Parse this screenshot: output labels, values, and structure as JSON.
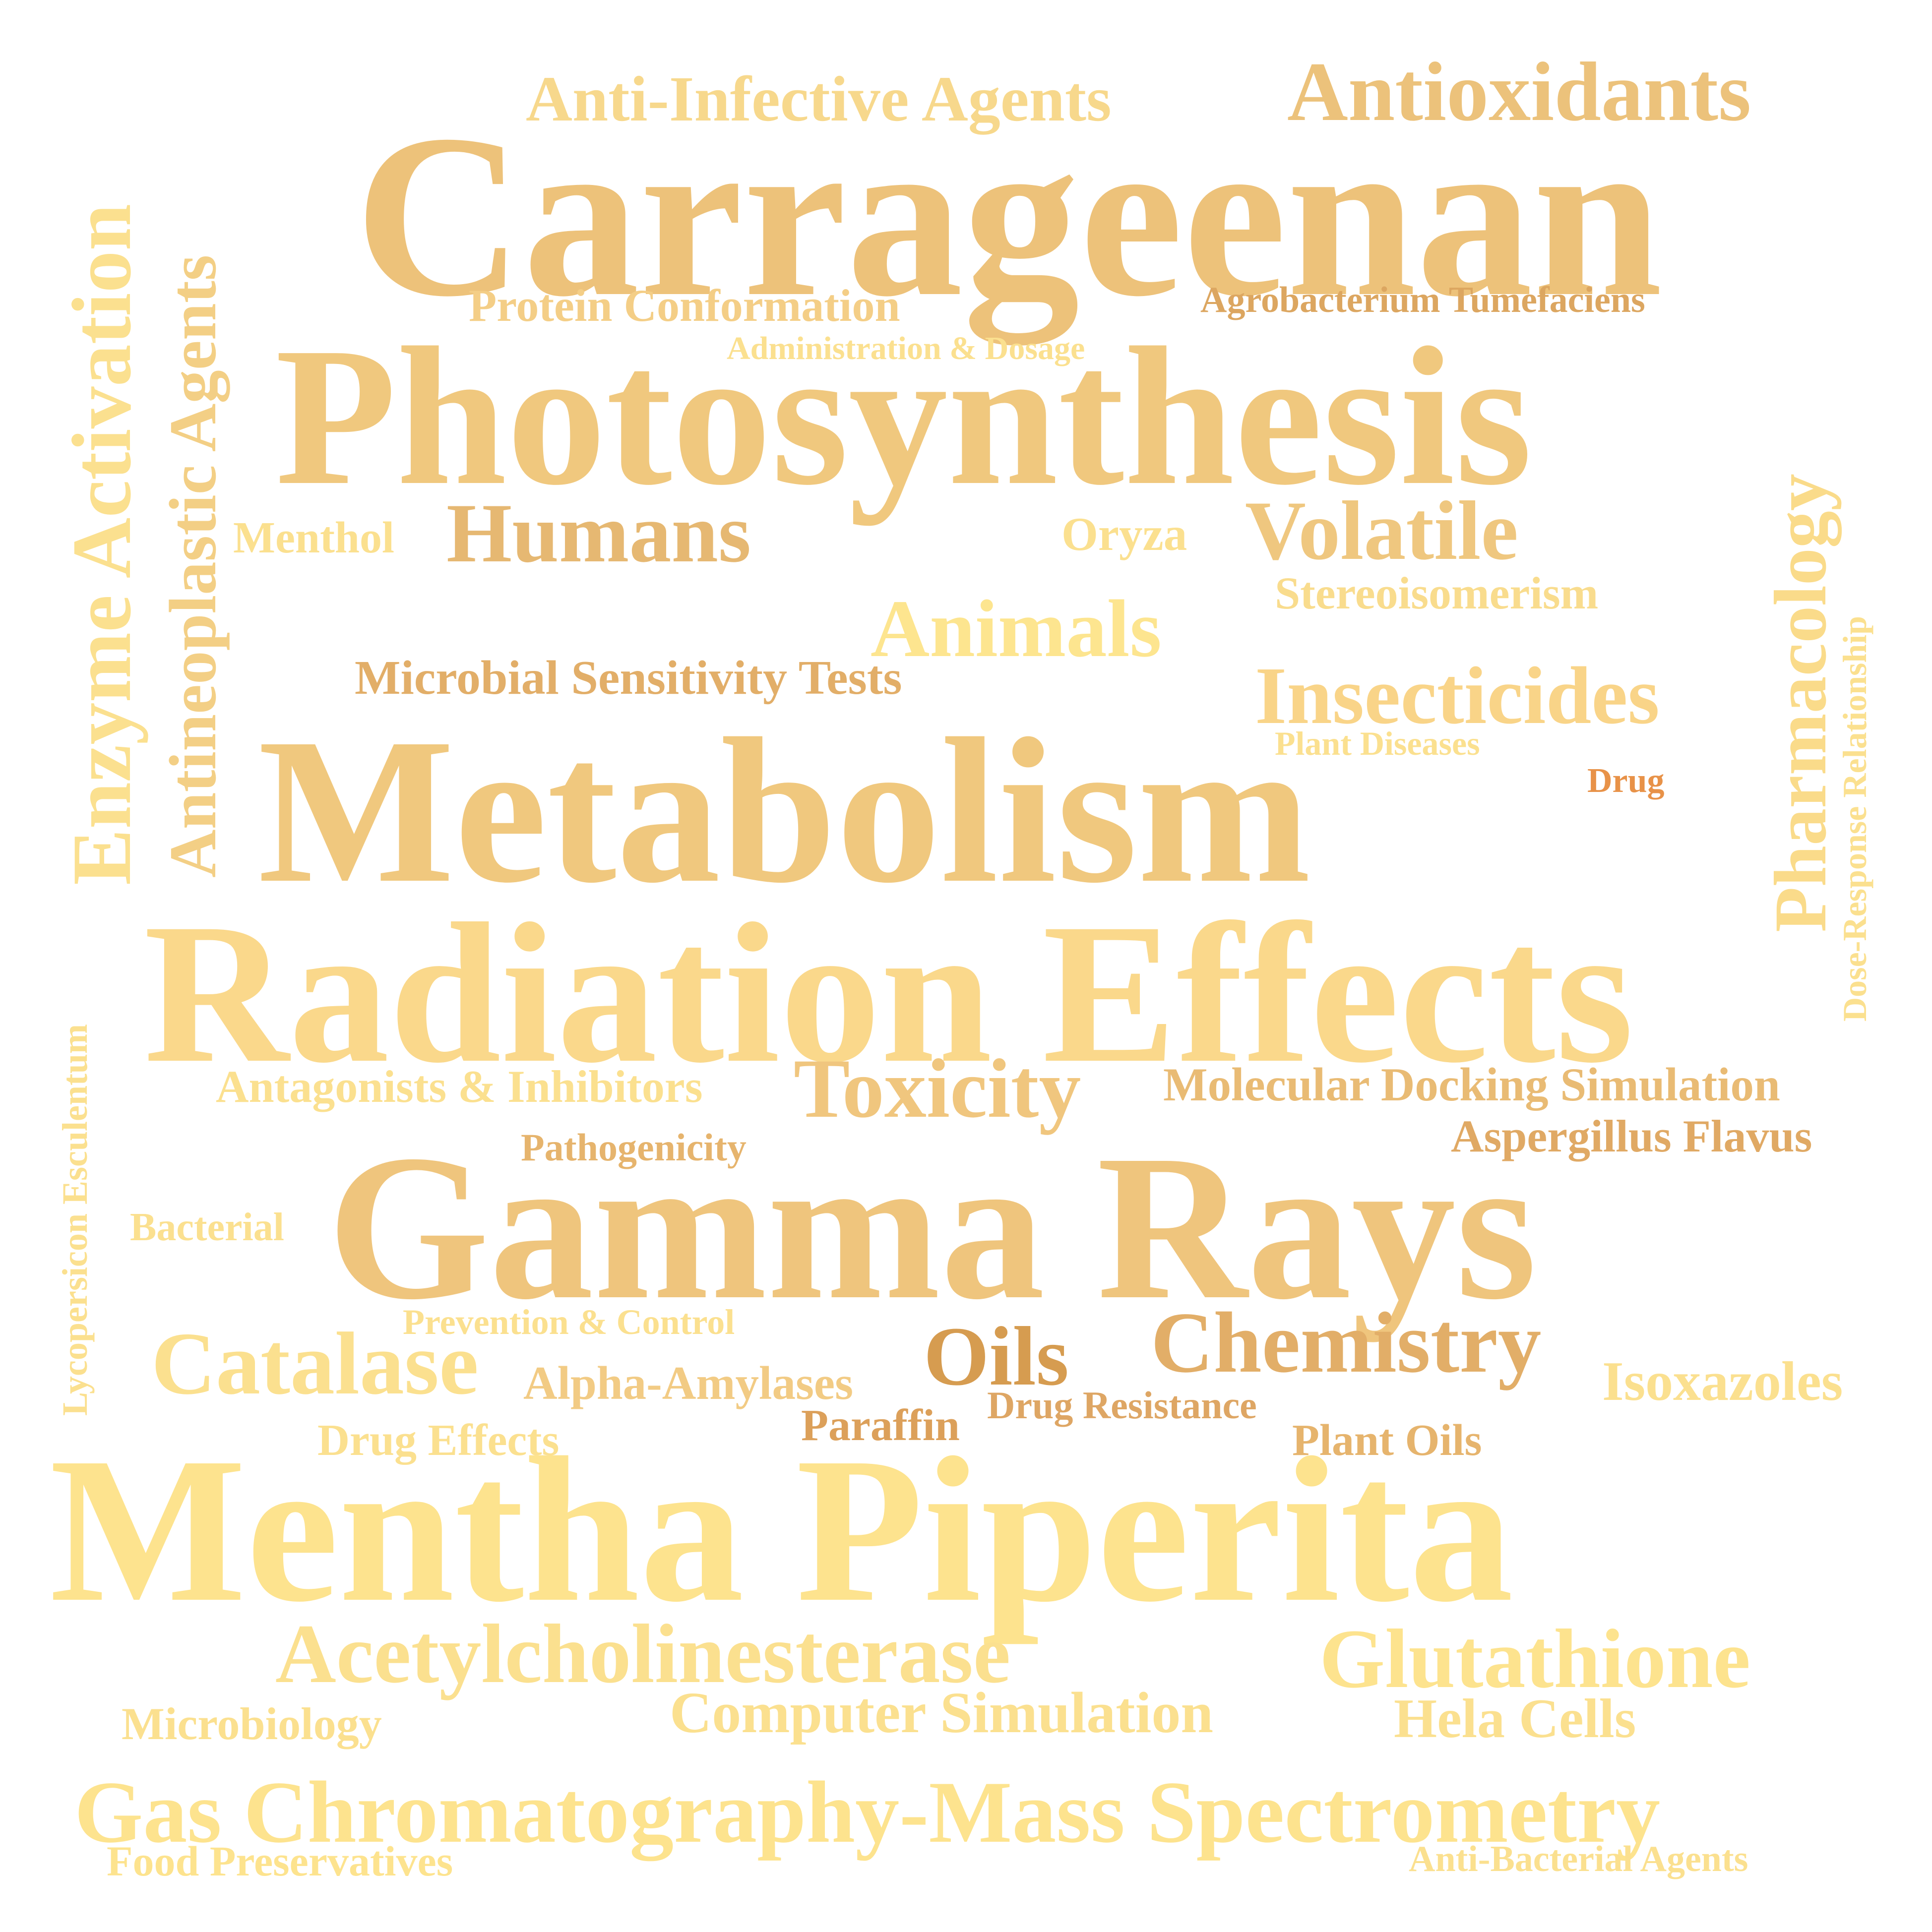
{
  "palette": {
    "pale_yellow": "#fde38e",
    "light_gold": "#f8d88a",
    "gold": "#f0c87e",
    "tan": "#e6b872",
    "bronze": "#d69c50",
    "orange": "#e89248"
  },
  "words": [
    {
      "text": "Carrageenan",
      "color": "#edc27a"
    },
    {
      "text": "Photosynthesis",
      "color": "#f0c87e"
    },
    {
      "text": "Metabolism",
      "color": "#f0c87e"
    },
    {
      "text": "Radiation Effects",
      "color": "#fad88b"
    },
    {
      "text": "Gamma Rays",
      "color": "#efc57d"
    },
    {
      "text": "Mentha Piperita",
      "color": "#fde38e"
    },
    {
      "text": "Anti-Infective Agents",
      "color": "#f7d88c"
    },
    {
      "text": "Antioxidants",
      "color": "#ecc27b"
    },
    {
      "text": "Enzyme Activation",
      "color": "#fbe08f"
    },
    {
      "text": "Antineoplastic Agents",
      "color": "#f3cf85"
    },
    {
      "text": "Protein Conformation",
      "color": "#f4ce86"
    },
    {
      "text": "Agrobacterium Tumefaciens",
      "color": "#dca660"
    },
    {
      "text": "Administration & Dosage",
      "color": "#fbe08f"
    },
    {
      "text": "Pharmacology",
      "color": "#fadb8a"
    },
    {
      "text": "Dose-Response Relationship",
      "color": "#fbe08f"
    },
    {
      "text": "Menthol",
      "color": "#fbe08f"
    },
    {
      "text": "Humans",
      "color": "#e6b872"
    },
    {
      "text": "Oryza",
      "color": "#fbe08f"
    },
    {
      "text": "Volatile",
      "color": "#efc77f"
    },
    {
      "text": "Stereoisomerism",
      "color": "#f9dc8d"
    },
    {
      "text": "Animals",
      "color": "#fde58f"
    },
    {
      "text": "Microbial Sensitivity Tests",
      "color": "#e2ae68"
    },
    {
      "text": "Insecticides",
      "color": "#f9d488"
    },
    {
      "text": "Plant Diseases",
      "color": "#fbe08f"
    },
    {
      "text": "Drug",
      "color": "#e89248"
    },
    {
      "text": "Lycopersicon Esculentum",
      "color": "#fbe08f"
    },
    {
      "text": "Antagonists & Inhibitors",
      "color": "#fbe08f"
    },
    {
      "text": "Toxicity",
      "color": "#f0c67e"
    },
    {
      "text": "Molecular Docking Simulation",
      "color": "#e9bb74"
    },
    {
      "text": "Aspergillus Flavus",
      "color": "#e0a964"
    },
    {
      "text": "Pathogenicity",
      "color": "#e6b46d"
    },
    {
      "text": "Bacterial",
      "color": "#fbe08f"
    },
    {
      "text": "Prevention & Control",
      "color": "#fbe08f"
    },
    {
      "text": "Catalase",
      "color": "#fbe08f"
    },
    {
      "text": "Oils",
      "color": "#d69c50"
    },
    {
      "text": "Chemistry",
      "color": "#e2ae68"
    },
    {
      "text": "Alpha-Amylases",
      "color": "#f2cb84"
    },
    {
      "text": "Isoxazoles",
      "color": "#fbe08f"
    },
    {
      "text": "Drug Resistance",
      "color": "#dea664"
    },
    {
      "text": "Paraffin",
      "color": "#dca05a"
    },
    {
      "text": "Drug Effects",
      "color": "#fbe08f"
    },
    {
      "text": "Plant Oils",
      "color": "#e6b46d"
    },
    {
      "text": "Acetylcholinesterase",
      "color": "#fbe08f"
    },
    {
      "text": "Glutathione",
      "color": "#fde38e"
    },
    {
      "text": "Microbiology",
      "color": "#fbe08f"
    },
    {
      "text": "Computer Simulation",
      "color": "#fbe08f"
    },
    {
      "text": "Hela Cells",
      "color": "#fbe08f"
    },
    {
      "text": "Gas Chromatography-Mass Spectrometry",
      "color": "#fde38e"
    },
    {
      "text": "Food Preservatives",
      "color": "#fde38e"
    },
    {
      "text": "Anti-Bacterial Agents",
      "color": "#fbe08f"
    }
  ]
}
